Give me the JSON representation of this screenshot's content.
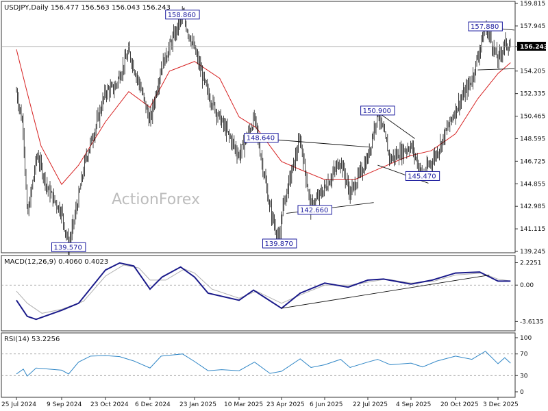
{
  "header": {
    "main": "USDJPY,Daily  156.477 156.563 156.043 156.243",
    "macd": "MACD(12,26,9) 0.4060 0.4023",
    "rsi": "RSI(14) 53.2256"
  },
  "watermark": "ActionForex",
  "colors": {
    "candle": "#111111",
    "ma": "#d62020",
    "macd_line": "#1a1a8a",
    "signal_line": "#b0b0b0",
    "rsi_line": "#2f86c6",
    "price_tag_bg": "#000000",
    "label_border": "#1a1a9e"
  },
  "chart_data": [
    {
      "type": "line",
      "panel": "price",
      "title": "USDJPY,Daily",
      "ylim": [
        139.245,
        159.815
      ],
      "y_ticks": [
        "159.815",
        "157.945",
        "156.243",
        "154.205",
        "152.335",
        "150.465",
        "148.595",
        "146.725",
        "144.855",
        "142.985",
        "141.115",
        "139.245"
      ],
      "last_price": "156.243",
      "x_ticks": [
        "25 Jul 2024",
        "9 Sep 2024",
        "23 Oct 2024",
        "6 Dec 2024",
        "23 Jan 2025",
        "10 Mar 2025",
        "23 Apr 2025",
        "6 Jun 2025",
        "22 Jul 2025",
        "4 Sep 2025",
        "20 Oct 2025",
        "3 Dec 2025"
      ],
      "series": [
        {
          "kind": "close",
          "values": [
            {
              "x": "25 Jul 2024",
              "y": 152.5
            },
            {
              "x": "2024-08-01",
              "y": 149.5
            },
            {
              "x": "2024-08-05",
              "y": 142.0
            },
            {
              "x": "2024-08-15",
              "y": 147.3
            },
            {
              "x": "2024-08-26",
              "y": 144.4
            },
            {
              "x": "9 Sep 2024",
              "y": 142.5
            },
            {
              "x": "2024-09-16",
              "y": 139.6
            },
            {
              "x": "2024-09-26",
              "y": 143.7
            },
            {
              "x": "2024-10-03",
              "y": 146.9
            },
            {
              "x": "2024-10-14",
              "y": 149.8
            },
            {
              "x": "23 Oct 2024",
              "y": 152.5
            },
            {
              "x": "2024-11-01",
              "y": 152.8
            },
            {
              "x": "2024-11-15",
              "y": 155.8
            },
            {
              "x": "2024-11-26",
              "y": 153.0
            },
            {
              "x": "6 Dec 2024",
              "y": 150.0
            },
            {
              "x": "2024-12-18",
              "y": 154.5
            },
            {
              "x": "2025-01-03",
              "y": 157.5
            },
            {
              "x": "2025-01-10",
              "y": 158.8
            },
            {
              "x": "23 Jan 2025",
              "y": 156.0
            },
            {
              "x": "2025-02-05",
              "y": 152.5
            },
            {
              "x": "2025-02-20",
              "y": 150.0
            },
            {
              "x": "10 Mar 2025",
              "y": 147.2
            },
            {
              "x": "2025-03-26",
              "y": 150.3
            },
            {
              "x": "2025-04-11",
              "y": 142.8
            },
            {
              "x": "2025-04-21",
              "y": 139.9
            },
            {
              "x": "23 Apr 2025",
              "y": 142.5
            },
            {
              "x": "2025-05-12",
              "y": 148.6
            },
            {
              "x": "2025-05-23",
              "y": 142.8
            },
            {
              "x": "6 Jun 2025",
              "y": 144.5
            },
            {
              "x": "2025-06-23",
              "y": 146.8
            },
            {
              "x": "2025-07-03",
              "y": 144.0
            },
            {
              "x": "22 Jul 2025",
              "y": 147.0
            },
            {
              "x": "2025-08-01",
              "y": 150.9
            },
            {
              "x": "2025-08-14",
              "y": 146.9
            },
            {
              "x": "4 Sep 2025",
              "y": 148.0
            },
            {
              "x": "2025-09-16",
              "y": 145.5
            },
            {
              "x": "2025-10-01",
              "y": 147.5
            },
            {
              "x": "20 Oct 2025",
              "y": 151.0
            },
            {
              "x": "2025-11-06",
              "y": 153.5
            },
            {
              "x": "2025-11-20",
              "y": 157.9
            },
            {
              "x": "3 Dec 2025",
              "y": 155.1
            },
            {
              "x": "2025-12-10",
              "y": 156.5
            },
            {
              "x": "2025-12-16",
              "y": 156.2
            }
          ]
        },
        {
          "kind": "moving-average",
          "values": [
            {
              "x": "25 Jul 2024",
              "y": 156.0
            },
            {
              "x": "2024-08-05",
              "y": 152.4
            },
            {
              "x": "2024-08-19",
              "y": 148.0
            },
            {
              "x": "9 Sep 2024",
              "y": 144.8
            },
            {
              "x": "2024-09-26",
              "y": 146.4
            },
            {
              "x": "23 Oct 2024",
              "y": 150.0
            },
            {
              "x": "2024-11-15",
              "y": 152.5
            },
            {
              "x": "6 Dec 2024",
              "y": 151.2
            },
            {
              "x": "2024-12-27",
              "y": 154.2
            },
            {
              "x": "23 Jan 2025",
              "y": 155.0
            },
            {
              "x": "2025-02-18",
              "y": 153.6
            },
            {
              "x": "10 Mar 2025",
              "y": 150.4
            },
            {
              "x": "2025-03-28",
              "y": 149.5
            },
            {
              "x": "23 Apr 2025",
              "y": 146.7
            },
            {
              "x": "2025-05-13",
              "y": 146.0
            },
            {
              "x": "6 Jun 2025",
              "y": 145.2
            },
            {
              "x": "2025-07-08",
              "y": 145.2
            },
            {
              "x": "22 Jul 2025",
              "y": 145.7
            },
            {
              "x": "2025-08-25",
              "y": 146.9
            },
            {
              "x": "4 Sep 2025",
              "y": 147.2
            },
            {
              "x": "2025-09-25",
              "y": 147.6
            },
            {
              "x": "20 Oct 2025",
              "y": 149.0
            },
            {
              "x": "2025-11-12",
              "y": 151.9
            },
            {
              "x": "3 Dec 2025",
              "y": 154.0
            },
            {
              "x": "2025-12-16",
              "y": 154.9
            }
          ]
        }
      ],
      "annotations": [
        {
          "text": "158.860",
          "x": "2025-01-10",
          "y": 158.86
        },
        {
          "text": "139.570",
          "x": "2024-09-16",
          "y": 139.57
        },
        {
          "text": "139.870",
          "x": "2025-04-21",
          "y": 139.87
        },
        {
          "text": "148.640",
          "x": "2025-04-02",
          "y": 148.64
        },
        {
          "text": "142.660",
          "x": "2025-05-27",
          "y": 142.66
        },
        {
          "text": "150.900",
          "x": "2025-08-01",
          "y": 150.9
        },
        {
          "text": "145.470",
          "x": "2025-09-16",
          "y": 145.47
        },
        {
          "text": "157.880",
          "x": "2025-11-20",
          "y": 157.88
        }
      ],
      "trendlines": [
        {
          "from": {
            "x": "2025-04-02",
            "y": 148.6
          },
          "to": {
            "x": "2025-07-23",
            "y": 147.9
          }
        },
        {
          "from": {
            "x": "2025-04-28",
            "y": 142.4
          },
          "to": {
            "x": "2025-07-28",
            "y": 143.3
          }
        },
        {
          "from": {
            "x": "2025-08-01",
            "y": 150.8
          },
          "to": {
            "x": "2025-09-08",
            "y": 148.6
          }
        },
        {
          "from": {
            "x": "2025-08-01",
            "y": 146.4
          },
          "to": {
            "x": "2025-09-22",
            "y": 144.9
          }
        },
        {
          "from": {
            "x": "2025-11-12",
            "y": 157.9
          },
          "to": {
            "x": "2025-12-20",
            "y": 157.6
          }
        },
        {
          "from": {
            "x": "2025-11-12",
            "y": 154.3
          },
          "to": {
            "x": "2025-12-20",
            "y": 154.4
          }
        }
      ]
    },
    {
      "type": "line",
      "panel": "macd",
      "title": "MACD(12,26,9)",
      "ylim": [
        -4.2,
        2.6
      ],
      "y_ticks": [
        "2.2251",
        "0.00",
        "-3.6135"
      ],
      "series": [
        {
          "kind": "macd",
          "values": [
            {
              "x": "25 Jul 2024",
              "y": -1.5
            },
            {
              "x": "2024-08-05",
              "y": -3.1
            },
            {
              "x": "2024-08-14",
              "y": -3.4
            },
            {
              "x": "9 Sep 2024",
              "y": -2.5
            },
            {
              "x": "2024-09-26",
              "y": -1.8
            },
            {
              "x": "23 Oct 2024",
              "y": 1.5
            },
            {
              "x": "2024-11-06",
              "y": 2.2
            },
            {
              "x": "2024-11-20",
              "y": 1.9
            },
            {
              "x": "6 Dec 2024",
              "y": -0.4
            },
            {
              "x": "2024-12-19",
              "y": 0.8
            },
            {
              "x": "2025-01-08",
              "y": 1.8
            },
            {
              "x": "23 Jan 2025",
              "y": 0.8
            },
            {
              "x": "2025-02-06",
              "y": -0.8
            },
            {
              "x": "10 Mar 2025",
              "y": -1.5
            },
            {
              "x": "2025-03-25",
              "y": -0.5
            },
            {
              "x": "23 Apr 2025",
              "y": -2.3
            },
            {
              "x": "2025-05-12",
              "y": -0.8
            },
            {
              "x": "6 Jun 2025",
              "y": 0.2
            },
            {
              "x": "2025-07-01",
              "y": -0.2
            },
            {
              "x": "22 Jul 2025",
              "y": 0.5
            },
            {
              "x": "2025-08-07",
              "y": 0.6
            },
            {
              "x": "4 Sep 2025",
              "y": 0.1
            },
            {
              "x": "2025-09-26",
              "y": 0.5
            },
            {
              "x": "20 Oct 2025",
              "y": 1.2
            },
            {
              "x": "2025-11-14",
              "y": 1.3
            },
            {
              "x": "3 Dec 2025",
              "y": 0.4
            },
            {
              "x": "2025-12-16",
              "y": 0.4
            }
          ]
        },
        {
          "kind": "signal",
          "values": [
            {
              "x": "25 Jul 2024",
              "y": -0.6
            },
            {
              "x": "2024-08-05",
              "y": -1.8
            },
            {
              "x": "2024-08-20",
              "y": -2.8
            },
            {
              "x": "9 Sep 2024",
              "y": -2.4
            },
            {
              "x": "2024-10-01",
              "y": -1.6
            },
            {
              "x": "23 Oct 2024",
              "y": 0.9
            },
            {
              "x": "2024-11-10",
              "y": 2.0
            },
            {
              "x": "2024-11-25",
              "y": 1.7
            },
            {
              "x": "6 Dec 2024",
              "y": 0.5
            },
            {
              "x": "2024-12-23",
              "y": 0.5
            },
            {
              "x": "2025-01-12",
              "y": 1.6
            },
            {
              "x": "23 Jan 2025",
              "y": 1.2
            },
            {
              "x": "2025-02-10",
              "y": -0.4
            },
            {
              "x": "10 Mar 2025",
              "y": -1.3
            },
            {
              "x": "2025-03-28",
              "y": -0.6
            },
            {
              "x": "23 Apr 2025",
              "y": -1.8
            },
            {
              "x": "2025-05-14",
              "y": -0.9
            },
            {
              "x": "6 Jun 2025",
              "y": 0.0
            },
            {
              "x": "2025-07-03",
              "y": 0.0
            },
            {
              "x": "22 Jul 2025",
              "y": 0.3
            },
            {
              "x": "2025-08-10",
              "y": 0.6
            },
            {
              "x": "4 Sep 2025",
              "y": 0.2
            },
            {
              "x": "2025-09-28",
              "y": 0.4
            },
            {
              "x": "20 Oct 2025",
              "y": 1.0
            },
            {
              "x": "2025-11-16",
              "y": 1.2
            },
            {
              "x": "3 Dec 2025",
              "y": 0.6
            },
            {
              "x": "2025-12-16",
              "y": 0.4
            }
          ]
        }
      ],
      "trendlines": [
        {
          "from": {
            "x": "2025-04-23",
            "y": -2.3
          },
          "to": {
            "x": "2025-11-24",
            "y": 1.0
          }
        }
      ]
    },
    {
      "type": "line",
      "panel": "rsi",
      "title": "RSI(14)",
      "ylim": [
        0,
        100
      ],
      "y_ticks": [
        "100",
        "70",
        "30",
        "0"
      ],
      "levels": [
        70,
        30
      ],
      "series": [
        {
          "kind": "rsi",
          "values": [
            {
              "x": "25 Jul 2024",
              "y": 33
            },
            {
              "x": "2024-08-01",
              "y": 42
            },
            {
              "x": "2024-08-05",
              "y": 29
            },
            {
              "x": "2024-08-14",
              "y": 44
            },
            {
              "x": "9 Sep 2024",
              "y": 40
            },
            {
              "x": "2024-09-16",
              "y": 33
            },
            {
              "x": "2024-09-26",
              "y": 55
            },
            {
              "x": "2024-10-08",
              "y": 66
            },
            {
              "x": "23 Oct 2024",
              "y": 67
            },
            {
              "x": "2024-11-06",
              "y": 65
            },
            {
              "x": "2024-11-20",
              "y": 57
            },
            {
              "x": "6 Dec 2024",
              "y": 44
            },
            {
              "x": "2024-12-18",
              "y": 66
            },
            {
              "x": "2025-01-10",
              "y": 70
            },
            {
              "x": "23 Jan 2025",
              "y": 56
            },
            {
              "x": "2025-02-06",
              "y": 39
            },
            {
              "x": "2025-02-20",
              "y": 41
            },
            {
              "x": "10 Mar 2025",
              "y": 39
            },
            {
              "x": "2025-03-26",
              "y": 55
            },
            {
              "x": "2025-04-11",
              "y": 34
            },
            {
              "x": "23 Apr 2025",
              "y": 38
            },
            {
              "x": "2025-05-12",
              "y": 61
            },
            {
              "x": "2025-05-23",
              "y": 45
            },
            {
              "x": "6 Jun 2025",
              "y": 50
            },
            {
              "x": "2025-06-23",
              "y": 60
            },
            {
              "x": "2025-07-03",
              "y": 45
            },
            {
              "x": "22 Jul 2025",
              "y": 55
            },
            {
              "x": "2025-08-01",
              "y": 60
            },
            {
              "x": "2025-08-14",
              "y": 50
            },
            {
              "x": "4 Sep 2025",
              "y": 53
            },
            {
              "x": "2025-09-16",
              "y": 46
            },
            {
              "x": "2025-10-01",
              "y": 57
            },
            {
              "x": "20 Oct 2025",
              "y": 66
            },
            {
              "x": "2025-11-06",
              "y": 60
            },
            {
              "x": "2025-11-20",
              "y": 75
            },
            {
              "x": "3 Dec 2025",
              "y": 52
            },
            {
              "x": "2025-12-10",
              "y": 63
            },
            {
              "x": "2025-12-16",
              "y": 53
            }
          ]
        }
      ]
    }
  ]
}
